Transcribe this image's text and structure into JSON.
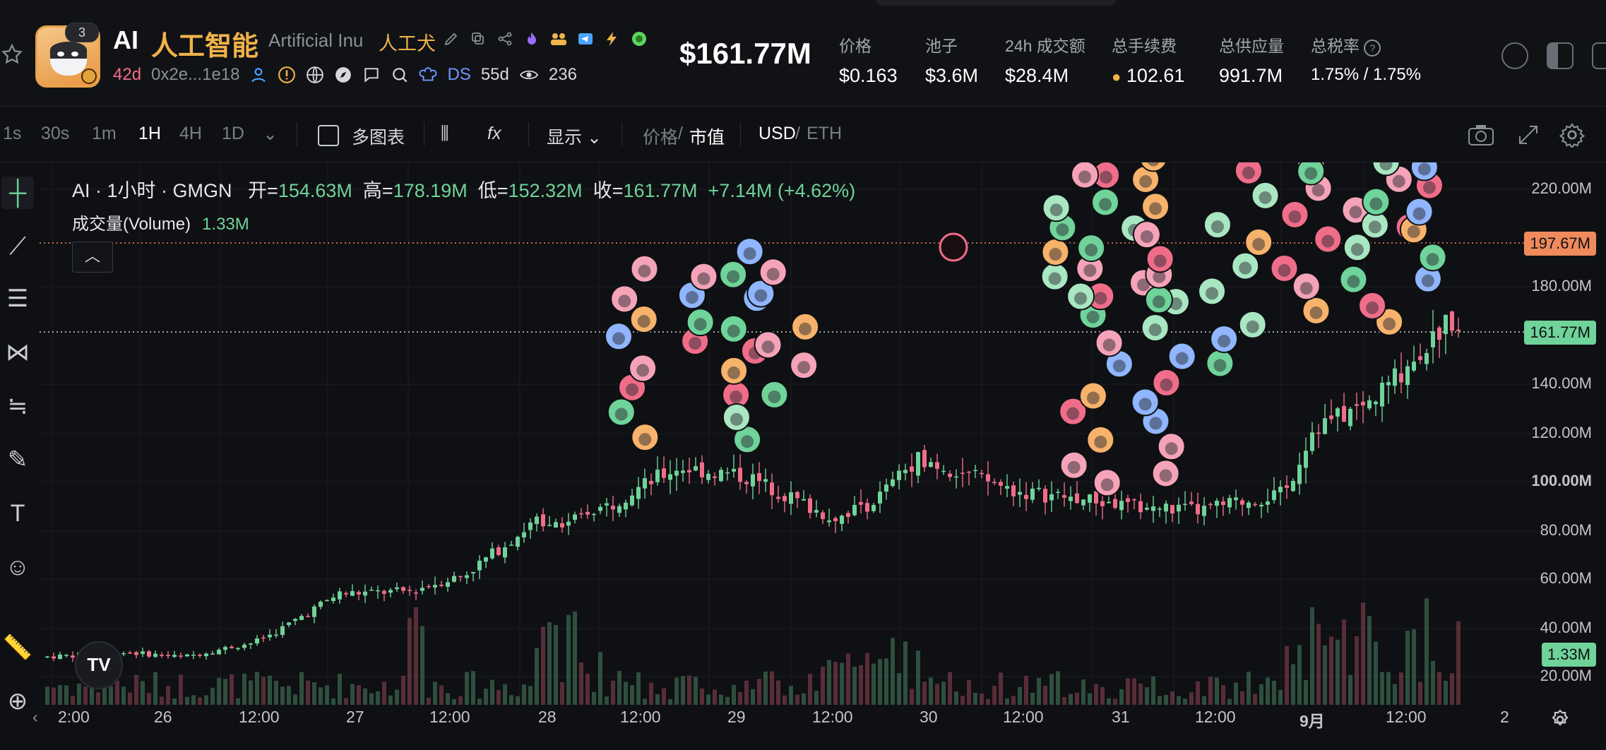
{
  "header": {
    "badge_count": "3",
    "symbol": "AI",
    "name_cn": "人工智能",
    "name_en": "Artificial Inu",
    "name_en_cn": "人工犬",
    "age": "42d",
    "address": "0x2e...1e18",
    "ds_label": "DS",
    "ds_age": "55d",
    "views": "236",
    "market_cap": "$161.77M",
    "stats": [
      {
        "label": "价格",
        "value": "$0.163"
      },
      {
        "label": "池子",
        "value": "$3.6M"
      },
      {
        "label": "24h 成交额",
        "value": "$28.4M"
      },
      {
        "label": "总手续费",
        "value": "102.61"
      },
      {
        "label": "总供应量",
        "value": "991.7M"
      },
      {
        "label": "总税率",
        "value": "1.75% / 1.75%"
      }
    ]
  },
  "toolbar": {
    "intervals": [
      "1s",
      "30s",
      "1m",
      "1H",
      "4H",
      "1D"
    ],
    "active_interval": "1H",
    "multi_chart": "多图表",
    "display": "显示",
    "price": "价格",
    "mcap": "市值",
    "usd": "USD",
    "eth": "ETH"
  },
  "legend": {
    "title": "AI · 1小时 · GMGN",
    "open_label": "开=",
    "open": "154.63M",
    "high_label": "高=",
    "high": "178.19M",
    "low_label": "低=",
    "low": "152.32M",
    "close_label": "收=",
    "close": "161.77M",
    "change": "+7.14M (+4.62%)",
    "volume_label": "成交量(Volume)",
    "volume": "1.33M"
  },
  "chart_data": {
    "type": "candlestick",
    "y_axis_ticks": [
      "220.00M",
      "180.00M",
      "140.00M",
      "120.00M",
      "100.00M",
      "80.00M",
      "60.00M",
      "40.00M",
      "20.00M"
    ],
    "x_axis_ticks": [
      "2:00",
      "26",
      "12:00",
      "27",
      "12:00",
      "28",
      "12:00",
      "29",
      "12:00",
      "30",
      "12:00",
      "31",
      "12:00",
      "9月",
      "12:00",
      "2"
    ],
    "price_tags": [
      {
        "label": "197.67M",
        "color": "#f08a5d"
      },
      {
        "label": "161.77M",
        "color": "#6fd39a"
      },
      {
        "label": "1.33M",
        "color": "#6fd39a"
      }
    ],
    "up_color": "#6fd39a",
    "down_color": "#f06d8a"
  },
  "colors": {
    "bg": "#0f1013",
    "up": "#6fd39a",
    "down": "#f06d8a",
    "accent": "#f0b24a"
  }
}
